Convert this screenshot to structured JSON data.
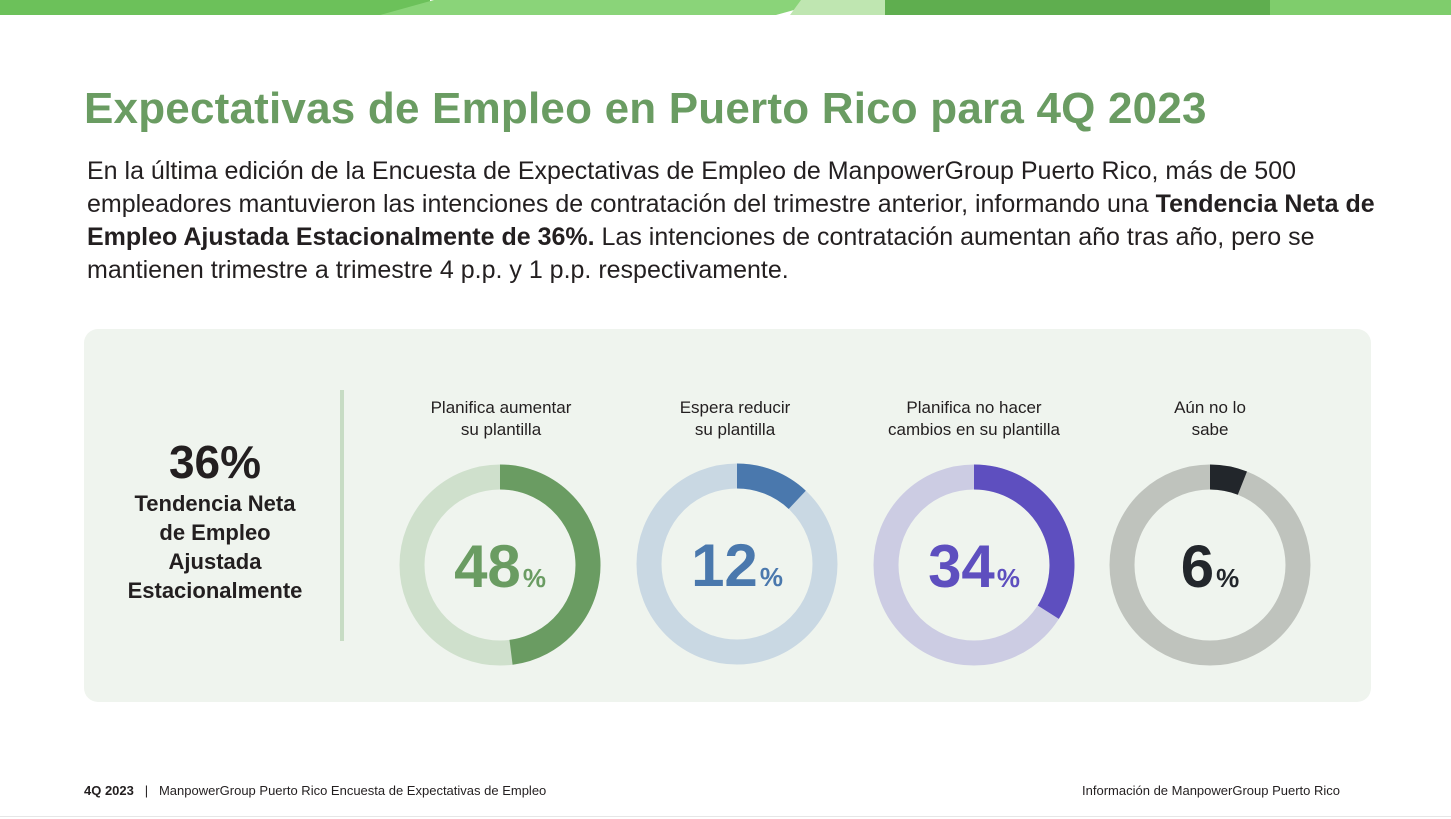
{
  "title": "Expectativas de Empleo en Puerto Rico para 4Q 2023",
  "intro": {
    "part1": "En la última edición de la Encuesta de Expectativas de Empleo de ManpowerGroup Puerto Rico, más de 500 empleadores mantuvieron las intenciones de contratación del trimestre anterior, informando una ",
    "bold": "Tendencia Neta de Empleo Ajustada Estacionalmente de 36%.",
    "part2": "  Las intenciones de contratación aumentan año tras año, pero se mantienen trimestre a trimestre 4 p.p. y 1 p.p. respectivamente."
  },
  "kpi": {
    "value": "36%",
    "label_lines": [
      "Tendencia Neta",
      "de Empleo",
      "Ajustada",
      "Estacionalmente"
    ]
  },
  "chart_data": {
    "type": "pie",
    "donuts": [
      {
        "label_lines": [
          "Planifica aumentar",
          "su plantilla"
        ],
        "value": 48,
        "display": "48",
        "unit": "%",
        "color": "#6a9c62",
        "track_color": "#cfe0cc"
      },
      {
        "label_lines": [
          "Espera reducir",
          "su plantilla"
        ],
        "value": 12,
        "display": "12",
        "unit": "%",
        "color": "#4a78ad",
        "track_color": "#c9d8e3"
      },
      {
        "label_lines": [
          "Planifica no hacer",
          "cambios en su plantilla"
        ],
        "value": 34,
        "display": "34",
        "unit": "%",
        "color": "#5e4fbf",
        "track_color": "#cccce3"
      },
      {
        "label_lines": [
          "Aún no lo",
          "sabe"
        ],
        "value": 6,
        "display": "6",
        "unit": "%",
        "color": "#22262b",
        "track_color": "#bfc3bd"
      }
    ]
  },
  "footer": {
    "period": "4Q 2023",
    "separator": "|",
    "survey": "ManpowerGroup Puerto Rico Encuesta de Expectativas de Empleo",
    "right": "Información de ManpowerGroup Puerto Rico"
  },
  "colors": {
    "title_green": "#6a9c62",
    "panel_bg": "#eff4ee",
    "top_bar": [
      "#6fbf5a",
      "#8fd67c",
      "#b7e3a8",
      "#5fb04d"
    ]
  }
}
